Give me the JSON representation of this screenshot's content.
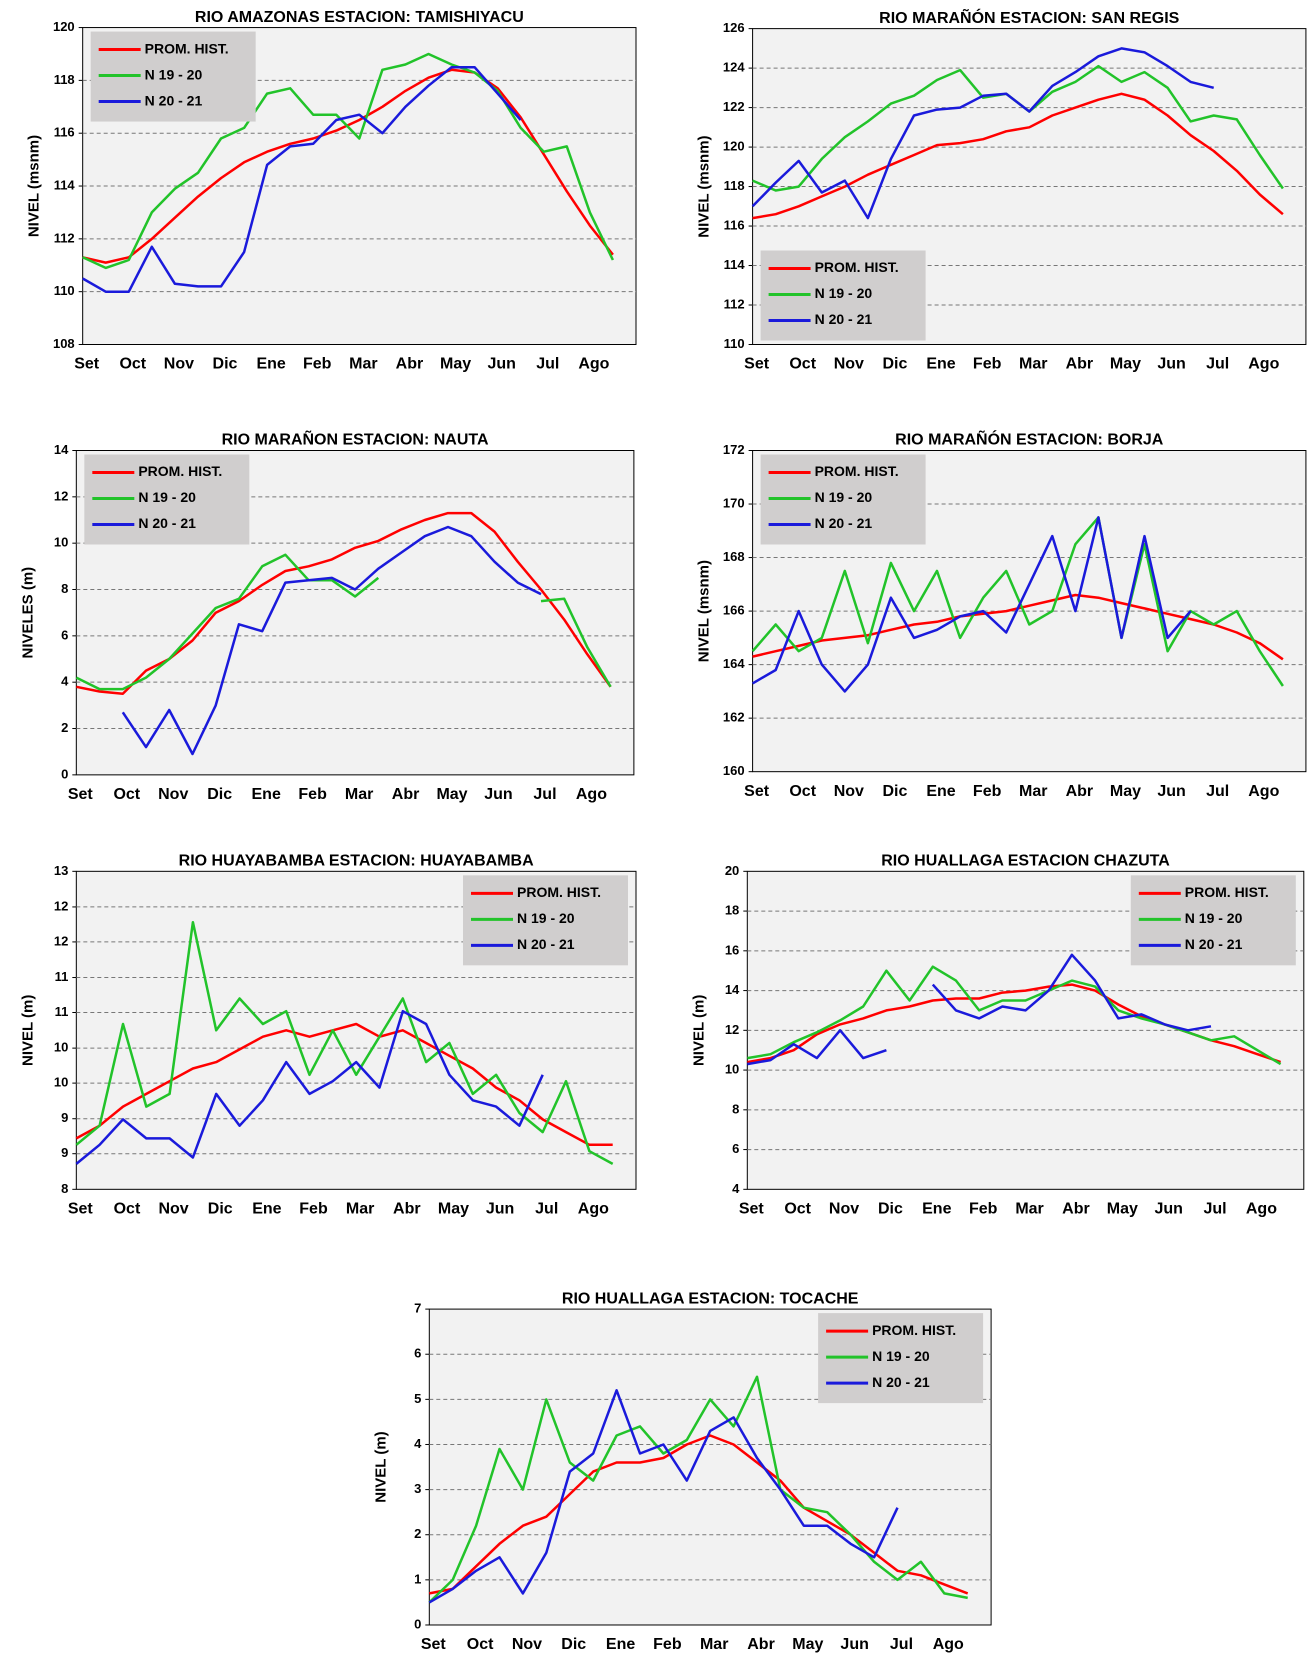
{
  "chart_data": [
    {
      "type": "line",
      "title": "RIO AMAZONAS ESTACION:  TAMISHIYACU",
      "y_label": "NIVEL (msnm)",
      "legend": "upper left",
      "grid": true,
      "categories": [
        "Set",
        null,
        "Oct",
        null,
        "Nov",
        null,
        "Dic",
        null,
        "Ene",
        null,
        "Feb",
        null,
        "Mar",
        null,
        "Abr",
        null,
        "May",
        null,
        "Jun",
        null,
        "Jul",
        null,
        "Ago",
        null
      ],
      "ylim": [
        108,
        120
      ],
      "yticks": [
        108,
        110,
        112,
        114,
        116,
        118,
        120
      ],
      "series": [
        {
          "name": "PROM. HIST.",
          "color": "#ff0000",
          "values": [
            111.3,
            111.1,
            111.3,
            112,
            112.8,
            113.6,
            114.3,
            114.9,
            115.3,
            115.6,
            115.8,
            116.1,
            116.5,
            117,
            117.6,
            118.1,
            118.4,
            118.3,
            117.7,
            116.6,
            115.2,
            113.8,
            112.5,
            111.4
          ]
        },
        {
          "name": "N 19 - 20",
          "color": "#22c32a",
          "values": [
            111.3,
            110.9,
            111.2,
            113,
            113.9,
            114.5,
            115.8,
            116.2,
            117.5,
            117.7,
            116.7,
            116.7,
            115.8,
            118.4,
            118.6,
            119,
            118.6,
            118.3,
            117.6,
            116.2,
            115.3,
            115.5,
            113,
            111.2
          ]
        },
        {
          "name": "N 20 - 21",
          "color": "#1a1adb",
          "values": [
            110.5,
            110,
            110,
            111.7,
            110.3,
            110.2,
            110.2,
            111.5,
            114.8,
            115.5,
            115.6,
            116.5,
            116.7,
            116,
            117,
            117.8,
            118.5,
            118.5,
            117.5,
            116.5,
            null,
            null,
            null,
            null
          ]
        }
      ]
    },
    {
      "type": "line",
      "title": "RIO MARAÑÓN ESTACION:  SAN REGIS",
      "y_label": "NIVEL (msnm)",
      "legend": "lower left",
      "grid": true,
      "categories": [
        "Set",
        null,
        "Oct",
        null,
        "Nov",
        null,
        "Dic",
        null,
        "Ene",
        null,
        "Feb",
        null,
        "Mar",
        null,
        "Abr",
        null,
        "May",
        null,
        "Jun",
        null,
        "Jul",
        null,
        "Ago",
        null
      ],
      "ylim": [
        110,
        126
      ],
      "yticks": [
        110,
        112,
        114,
        116,
        118,
        120,
        122,
        124,
        126
      ],
      "series": [
        {
          "name": "PROM. HIST.",
          "color": "#ff0000",
          "values": [
            116.4,
            116.6,
            117,
            117.5,
            118,
            118.6,
            119.1,
            119.6,
            120.1,
            120.2,
            120.4,
            120.8,
            121,
            121.6,
            122,
            122.4,
            122.7,
            122.4,
            121.6,
            120.6,
            119.8,
            118.8,
            117.6,
            116.6
          ]
        },
        {
          "name": "N 19 - 20",
          "color": "#22c32a",
          "values": [
            118.3,
            117.8,
            118,
            119.4,
            120.5,
            121.3,
            122.2,
            122.6,
            123.4,
            123.9,
            122.5,
            122.7,
            121.8,
            122.8,
            123.3,
            124.1,
            123.3,
            123.8,
            123,
            121.3,
            121.6,
            121.4,
            119.6,
            117.9
          ]
        },
        {
          "name": "N 20 - 21",
          "color": "#1a1adb",
          "values": [
            117,
            118.2,
            119.3,
            117.7,
            118.3,
            116.4,
            119.4,
            121.6,
            121.9,
            122,
            122.6,
            122.7,
            121.8,
            123.1,
            123.8,
            124.6,
            125,
            124.8,
            124.1,
            123.3,
            123,
            null,
            null,
            null
          ]
        }
      ]
    },
    {
      "type": "line",
      "title": "RIO MARAÑON ESTACION:  NAUTA",
      "y_label": "NIVELES (m)",
      "legend": "upper left",
      "grid": true,
      "categories": [
        "Set",
        null,
        "Oct",
        null,
        "Nov",
        null,
        "Dic",
        null,
        "Ene",
        null,
        "Feb",
        null,
        "Mar",
        null,
        "Abr",
        null,
        "May",
        null,
        "Jun",
        null,
        "Jul",
        null,
        "Ago",
        null
      ],
      "ylim": [
        0,
        14
      ],
      "yticks": [
        0,
        2,
        4,
        6,
        8,
        10,
        12,
        14
      ],
      "series": [
        {
          "name": "PROM. HIST.",
          "color": "#ff0000",
          "values": [
            3.8,
            3.6,
            3.5,
            4.5,
            5,
            5.8,
            7,
            7.5,
            8.2,
            8.8,
            9,
            9.3,
            9.8,
            10.1,
            10.6,
            11,
            11.3,
            11.3,
            10.5,
            9.2,
            8,
            6.7,
            5.2,
            3.8
          ]
        },
        {
          "name": "N 19 - 20",
          "color": "#22c32a",
          "values": [
            4.2,
            3.7,
            3.7,
            4.2,
            5,
            6.1,
            7.2,
            7.6,
            9,
            9.5,
            8.4,
            8.4,
            7.7,
            8.5,
            null,
            null,
            null,
            null,
            null,
            null,
            7.5,
            7.6,
            5.5,
            3.8
          ]
        },
        {
          "name": "N 20 - 21",
          "color": "#1a1adb",
          "values": [
            3.7,
            null,
            2.7,
            1.2,
            2.8,
            0.9,
            3,
            6.5,
            6.2,
            8.3,
            8.4,
            8.5,
            8,
            8.9,
            9.6,
            10.3,
            10.7,
            10.3,
            9.2,
            8.3,
            7.8,
            null,
            null,
            null
          ]
        }
      ]
    },
    {
      "type": "line",
      "title": "RIO MARAÑÓN ESTACION:  BORJA",
      "y_label": "NIVEL (msnm)",
      "legend": "upper left",
      "grid": true,
      "categories": [
        "Set",
        null,
        "Oct",
        null,
        "Nov",
        null,
        "Dic",
        null,
        "Ene",
        null,
        "Feb",
        null,
        "Mar",
        null,
        "Abr",
        null,
        "May",
        null,
        "Jun",
        null,
        "Jul",
        null,
        "Ago",
        null
      ],
      "ylim": [
        160,
        172
      ],
      "yticks": [
        160,
        162,
        164,
        166,
        168,
        170,
        172
      ],
      "series": [
        {
          "name": "PROM. HIST.",
          "color": "#ff0000",
          "values": [
            164.3,
            164.5,
            164.7,
            164.9,
            165,
            165.1,
            165.3,
            165.5,
            165.6,
            165.8,
            165.9,
            166,
            166.2,
            166.4,
            166.6,
            166.5,
            166.3,
            166.1,
            165.9,
            165.7,
            165.5,
            165.2,
            164.8,
            164.2
          ]
        },
        {
          "name": "N 19 - 20",
          "color": "#22c32a",
          "values": [
            164.5,
            165.5,
            164.5,
            165,
            167.5,
            164.8,
            167.8,
            166,
            167.5,
            165,
            166.5,
            167.5,
            165.5,
            166,
            168.5,
            169.5,
            165,
            168.5,
            164.5,
            166,
            165.5,
            166,
            164.5,
            163.2
          ]
        },
        {
          "name": "N 20 - 21",
          "color": "#1a1adb",
          "values": [
            163.3,
            163.8,
            166,
            164,
            163,
            164,
            166.5,
            165,
            165.3,
            165.8,
            166,
            165.2,
            167,
            168.8,
            166,
            169.5,
            165,
            168.8,
            165,
            166,
            null,
            null,
            null,
            null
          ]
        }
      ]
    },
    {
      "type": "line",
      "title": "RIO HUAYABAMBA  ESTACION:  HUAYABAMBA",
      "y_label": "NIVEL (m)",
      "legend": "upper right",
      "grid": true,
      "categories": [
        "Set",
        null,
        "Oct",
        null,
        "Nov",
        null,
        "Dic",
        null,
        "Ene",
        null,
        "Feb",
        null,
        "Mar",
        null,
        "Abr",
        null,
        "May",
        null,
        "Jun",
        null,
        "Jul",
        null,
        "Ago",
        null
      ],
      "ylim": [
        8,
        13
      ],
      "yticks": [
        8,
        {
          "value": 8.56,
          "label": "9"
        },
        {
          "value": 9.11,
          "label": "9"
        },
        {
          "value": 9.67,
          "label": "10"
        },
        {
          "value": 10.22,
          "label": "10"
        },
        {
          "value": 10.78,
          "label": "11"
        },
        {
          "value": 11.33,
          "label": "11"
        },
        {
          "value": 11.89,
          "label": "12"
        },
        {
          "value": 12.44,
          "label": "12"
        },
        13
      ],
      "series": [
        {
          "name": "PROM. HIST.",
          "color": "#ff0000",
          "values": [
            8.8,
            9,
            9.3,
            9.5,
            9.7,
            9.9,
            10,
            10.2,
            10.4,
            10.5,
            10.4,
            10.5,
            10.6,
            10.4,
            10.5,
            10.3,
            10.1,
            9.9,
            9.6,
            9.4,
            9.1,
            8.9,
            8.7,
            8.7
          ]
        },
        {
          "name": "N 19 - 20",
          "color": "#22c32a",
          "values": [
            8.7,
            9,
            10.6,
            9.3,
            9.5,
            12.2,
            10.5,
            11,
            10.6,
            10.8,
            9.8,
            10.5,
            9.8,
            10.4,
            11,
            10,
            10.3,
            9.5,
            9.8,
            9.2,
            8.9,
            9.7,
            8.6,
            8.4
          ]
        },
        {
          "name": "N 20 - 21",
          "color": "#1a1adb",
          "values": [
            8.4,
            8.7,
            9.1,
            8.8,
            8.8,
            8.5,
            9.5,
            9,
            9.4,
            10,
            9.5,
            9.7,
            10,
            9.6,
            10.8,
            10.6,
            9.8,
            9.4,
            9.3,
            9,
            9.8,
            null,
            null,
            null
          ]
        }
      ]
    },
    {
      "type": "line",
      "title": "RIO HUALLAGA ESTACION CHAZUTA",
      "y_label": "NIVEL (m)",
      "legend": "upper right",
      "grid": true,
      "categories": [
        "Set",
        null,
        "Oct",
        null,
        "Nov",
        null,
        "Dic",
        null,
        "Ene",
        null,
        "Feb",
        null,
        "Mar",
        null,
        "Abr",
        null,
        "May",
        null,
        "Jun",
        null,
        "Jul",
        null,
        "Ago",
        null
      ],
      "ylim": [
        4,
        20
      ],
      "yticks": [
        4,
        6,
        8,
        10,
        12,
        14,
        16,
        18,
        20
      ],
      "series": [
        {
          "name": "PROM. HIST.",
          "color": "#ff0000",
          "values": [
            10.4,
            10.6,
            11,
            11.8,
            12.3,
            12.6,
            13,
            13.2,
            13.5,
            13.6,
            13.6,
            13.9,
            14,
            14.2,
            14.3,
            14,
            13.3,
            12.7,
            12.3,
            11.9,
            11.5,
            11.2,
            10.8,
            10.4
          ]
        },
        {
          "name": "N 19 - 20",
          "color": "#22c32a",
          "values": [
            10.6,
            10.8,
            11.4,
            11.9,
            12.5,
            13.2,
            15,
            13.5,
            15.2,
            14.5,
            13,
            13.5,
            13.5,
            14,
            14.5,
            14.2,
            13,
            12.6,
            12.3,
            11.9,
            11.5,
            11.7,
            11,
            10.3
          ]
        },
        {
          "name": "N 20 - 21",
          "color": "#1a1adb",
          "values": [
            10.3,
            10.5,
            11.3,
            10.6,
            12,
            10.6,
            11,
            null,
            14.3,
            13,
            12.6,
            13.2,
            13,
            14,
            15.8,
            14.5,
            12.6,
            12.8,
            12.3,
            12,
            12.2,
            null,
            null,
            null
          ]
        }
      ]
    },
    {
      "type": "line",
      "title": "RIO HUALLAGA ESTACION:  TOCACHE",
      "y_label": "NIVEL (m)",
      "legend": "upper right",
      "grid": true,
      "categories": [
        "Set",
        null,
        "Oct",
        null,
        "Nov",
        null,
        "Dic",
        null,
        "Ene",
        null,
        "Feb",
        null,
        "Mar",
        null,
        "Abr",
        null,
        "May",
        null,
        "Jun",
        null,
        "Jul",
        null,
        "Ago",
        null
      ],
      "ylim": [
        0,
        7
      ],
      "yticks": [
        0,
        1,
        2,
        3,
        4,
        5,
        6,
        7
      ],
      "series": [
        {
          "name": "PROM. HIST.",
          "color": "#ff0000",
          "values": [
            0.7,
            0.8,
            1.3,
            1.8,
            2.2,
            2.4,
            2.9,
            3.4,
            3.6,
            3.6,
            3.7,
            4,
            4.2,
            4,
            3.6,
            3.2,
            2.6,
            2.3,
            2,
            1.6,
            1.2,
            1.1,
            0.9,
            0.7
          ]
        },
        {
          "name": "N 19 - 20",
          "color": "#22c32a",
          "values": [
            0.5,
            1,
            2.2,
            3.9,
            3,
            5,
            3.6,
            3.2,
            4.2,
            4.4,
            3.8,
            4.1,
            5,
            4.4,
            5.5,
            3,
            2.6,
            2.5,
            2,
            1.4,
            1,
            1.4,
            0.7,
            0.6
          ]
        },
        {
          "name": "N 20 - 21",
          "color": "#1a1adb",
          "values": [
            0.5,
            0.8,
            1.2,
            1.5,
            0.7,
            1.6,
            3.4,
            3.8,
            5.2,
            3.8,
            4,
            3.2,
            4.3,
            4.6,
            3.7,
            3,
            2.2,
            2.2,
            1.8,
            1.5,
            2.6,
            null,
            null,
            null
          ]
        }
      ]
    }
  ]
}
